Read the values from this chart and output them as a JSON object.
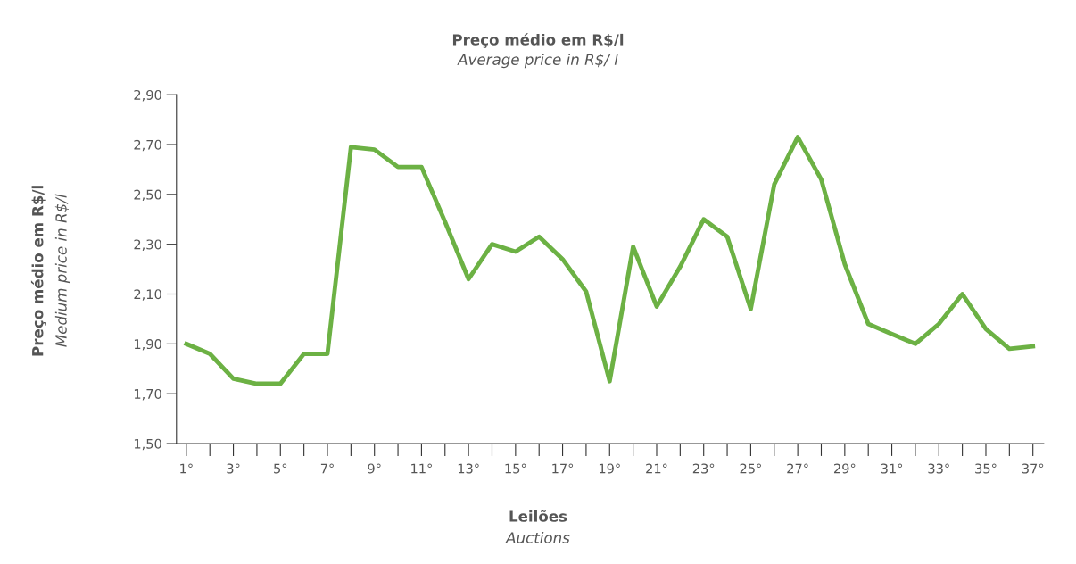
{
  "chart_data": {
    "type": "line",
    "title": "Preço médio em R$/l",
    "subtitle": "Average price in R$/ l",
    "xlabel": "Leilões\nAuctions",
    "ylabel": "Preço médio em R$/l\nMedium price in R$/l",
    "categories": [
      "1°",
      null,
      "3°",
      null,
      "5°",
      null,
      "7°",
      null,
      "9°",
      null,
      "11°",
      null,
      "13°",
      null,
      "15°",
      null,
      "17°",
      null,
      "19°",
      null,
      "21°",
      null,
      "23°",
      null,
      "25°",
      null,
      "27°",
      null,
      "29°",
      null,
      "31°",
      null,
      "33°",
      null,
      "35°",
      null,
      "37°"
    ],
    "series": [
      {
        "color": "#6cb144",
        "values": [
          1.9,
          1.86,
          1.76,
          1.74,
          1.74,
          1.86,
          1.86,
          2.69,
          2.68,
          2.61,
          2.61,
          2.39,
          2.16,
          2.3,
          2.27,
          2.33,
          2.24,
          2.11,
          1.75,
          2.29,
          2.05,
          2.21,
          2.4,
          2.33,
          2.04,
          2.54,
          2.73,
          2.56,
          2.22,
          1.98,
          1.94,
          1.9,
          1.98,
          2.1,
          1.96,
          1.88,
          1.89
        ]
      }
    ],
    "ylim": [
      1.5,
      2.9
    ],
    "yticks": [
      {
        "value": 1.5,
        "label": "1,50"
      },
      {
        "value": 1.7,
        "label": "1,70"
      },
      {
        "value": 1.9,
        "label": "1,90"
      },
      {
        "value": 2.1,
        "label": "2,10"
      },
      {
        "value": 2.3,
        "label": "2,30"
      },
      {
        "value": 2.5,
        "label": "2,50"
      },
      {
        "value": 2.7,
        "label": "2,70"
      },
      {
        "value": 2.9,
        "label": "2,90"
      }
    ],
    "grid": false,
    "legend": false,
    "marker": "none",
    "line_style": "solid"
  }
}
